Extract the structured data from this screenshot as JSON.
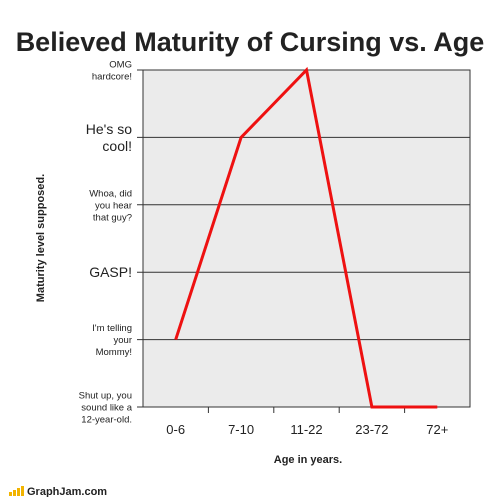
{
  "chart_data": {
    "type": "line",
    "title": "Believed Maturity of Cursing vs. Age",
    "xlabel": "Age in years.",
    "ylabel": "Maturity level supposed.",
    "categories": [
      "0-6",
      "7-10",
      "11-22",
      "23-72",
      "72+"
    ],
    "y_levels": [
      {
        "lines": [
          "Shut up, you",
          "sound like a",
          "12-year-old."
        ],
        "size": "small"
      },
      {
        "lines": [
          "I'm telling",
          "your",
          "Mommy!"
        ],
        "size": "small"
      },
      {
        "lines": [
          "GASP!"
        ],
        "size": "large"
      },
      {
        "lines": [
          "Whoa, did",
          "you hear",
          "that guy?"
        ],
        "size": "small"
      },
      {
        "lines": [
          "He's so",
          "cool!"
        ],
        "size": "large"
      },
      {
        "lines": [
          "OMG",
          "hardcore!"
        ],
        "size": "small"
      }
    ],
    "series": [
      {
        "values": [
          1,
          4,
          5,
          0,
          0
        ],
        "color": "#ee1111"
      }
    ],
    "ylim": [
      0,
      5
    ],
    "grid": true
  },
  "branding": {
    "site": "GraphJam.com"
  }
}
